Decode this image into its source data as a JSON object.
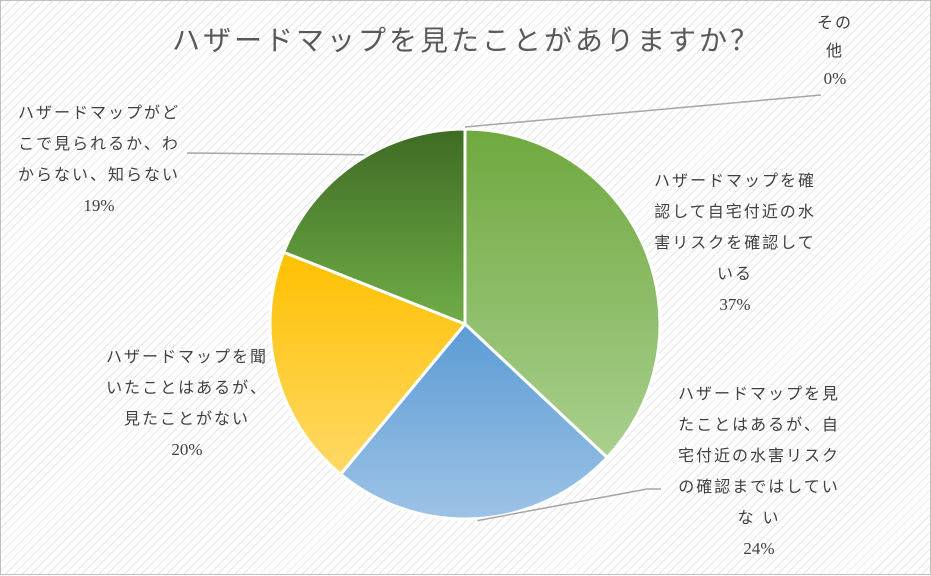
{
  "chart_data": {
    "type": "pie",
    "title": "ハザードマップを見たことがありますか？",
    "slices": [
      {
        "label_lines": [
          "ハザードマップを確",
          "認して自宅付近の水",
          "害リスクを確認して",
          "いる"
        ],
        "percent_text": "37%",
        "value": 37,
        "color_top": "#6fa83f",
        "color_bottom": "#a9d08e"
      },
      {
        "label_lines": [
          "ハザードマップを見",
          "たことはあるが、自",
          "宅付近の水害リスク",
          "の確認まではしてい",
          "な い"
        ],
        "percent_text": "24%",
        "value": 24,
        "color_top": "#5b9bd5",
        "color_bottom": "#9dc3e6"
      },
      {
        "label_lines": [
          "ハザードマップを聞",
          "いたことはあるが、",
          "見たことがない"
        ],
        "percent_text": "20%",
        "value": 20,
        "color_top": "#ffc000",
        "color_bottom": "#ffd966"
      },
      {
        "label_lines": [
          "ハザードマップがど",
          "こで見られるか、わ",
          "からない、知らない"
        ],
        "percent_text": "19%",
        "value": 19,
        "color_top": "#3e6b24",
        "color_bottom": "#70ad47"
      },
      {
        "label_lines": [
          "その",
          "他"
        ],
        "percent_text": "0%",
        "value": 0,
        "color_top": "#a5a5a5",
        "color_bottom": "#c9c9c9"
      }
    ]
  }
}
